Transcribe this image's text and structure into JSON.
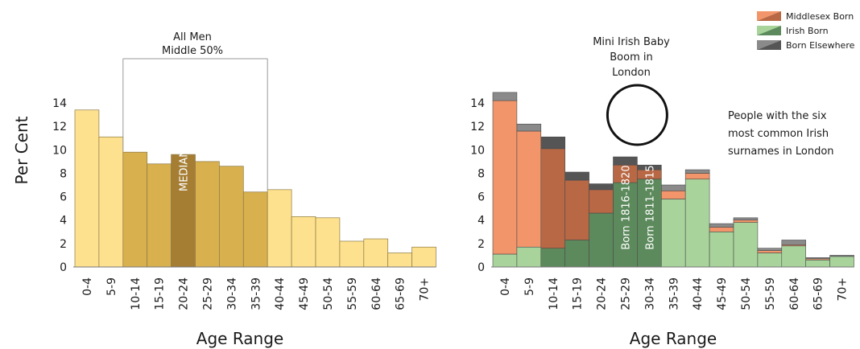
{
  "page": {
    "y_axis_title": "Per Cent"
  },
  "chart_data": [
    {
      "type": "bar",
      "xlabel": "Age Range",
      "ylim": [
        0,
        14
      ],
      "yticks": [
        0,
        2,
        4,
        6,
        8,
        10,
        12,
        14
      ],
      "categories": [
        "0-4",
        "5-9",
        "10-14",
        "15-19",
        "20-24",
        "25-29",
        "30-34",
        "35-39",
        "40-44",
        "45-49",
        "50-54",
        "55-59",
        "60-64",
        "65-69",
        "70+"
      ],
      "values": [
        13.4,
        11.1,
        9.8,
        8.8,
        9.6,
        9.0,
        8.6,
        6.4,
        6.6,
        4.3,
        4.2,
        2.2,
        2.4,
        1.2,
        1.7
      ],
      "colors": {
        "outer": "#fde18e",
        "middle": "#d8b04e",
        "median": "#a57e34",
        "median_label_color": "#ffffff",
        "bracket": "#9a9a9a"
      },
      "middle_50_categories": [
        "10-14",
        "15-19",
        "20-24",
        "25-29",
        "30-34",
        "35-39"
      ],
      "median_category": "20-24",
      "annotations": {
        "bracket_line1": "All Men",
        "bracket_line2": "Middle 50%",
        "median_label": "MEDIAN"
      }
    },
    {
      "type": "bar",
      "stacked": true,
      "xlabel": "Age Range",
      "ylim": [
        0,
        14
      ],
      "yticks": [
        0,
        2,
        4,
        6,
        8,
        10,
        12,
        14
      ],
      "categories": [
        "0-4",
        "5-9",
        "10-14",
        "15-19",
        "20-24",
        "25-29",
        "30-34",
        "35-39",
        "40-44",
        "45-49",
        "50-54",
        "55-59",
        "60-64",
        "65-69",
        "70+"
      ],
      "series": [
        {
          "name": "Irish Born",
          "color": "#a8d49c",
          "shaded_color": "#5c8a5c",
          "values": [
            1.1,
            1.7,
            1.6,
            2.3,
            4.6,
            7.2,
            7.5,
            5.8,
            7.5,
            3.0,
            3.8,
            1.2,
            1.8,
            0.6,
            0.9
          ]
        },
        {
          "name": "Middlesex Born",
          "color": "#f2956a",
          "shaded_color": "#b86845",
          "values": [
            13.1,
            9.9,
            8.5,
            5.1,
            2.0,
            1.5,
            0.8,
            0.7,
            0.5,
            0.4,
            0.2,
            0.2,
            0.1,
            0.1,
            0.0
          ]
        },
        {
          "name": "Born Elsewhere",
          "color": "#8a8a8a",
          "shaded_color": "#555555",
          "values": [
            0.7,
            0.6,
            1.0,
            0.7,
            0.5,
            0.7,
            0.4,
            0.5,
            0.3,
            0.3,
            0.2,
            0.2,
            0.4,
            0.1,
            0.1
          ]
        }
      ],
      "shaded_categories": [
        "10-14",
        "15-19",
        "20-24",
        "25-29",
        "30-34"
      ],
      "legend": {
        "position": "top-right"
      },
      "annotations": {
        "circle_line1": "Mini Irish Baby",
        "circle_line2": "Boom in",
        "circle_line3": "London",
        "circle_categories": [
          "25-29",
          "30-34"
        ],
        "born_1": "Born 1816-1820",
        "born_1_category": "25-29",
        "born_2": "Born 1811-1815",
        "born_2_category": "30-34",
        "note_line1": "People with the six",
        "note_line2": "most common Irish",
        "note_line3": "surnames in London"
      }
    }
  ]
}
